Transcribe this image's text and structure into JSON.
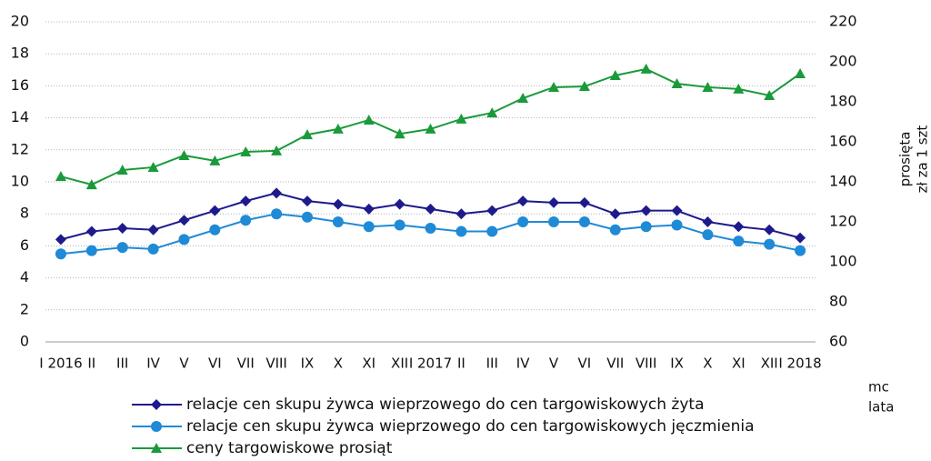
{
  "chart_data": {
    "type": "line",
    "categories": [
      "I 2016",
      "II",
      "III",
      "IV",
      "V",
      "VI",
      "VII",
      "VIII",
      "IX",
      "X",
      "XI",
      "XII",
      "I 2017",
      "II",
      "III",
      "IV",
      "V",
      "VI",
      "VII",
      "VIII",
      "IX",
      "X",
      "XI",
      "XII",
      "I 2018"
    ],
    "series": [
      {
        "name": "relacje cen skupu żywca wieprzowego do cen targowiskowych żyta",
        "color": "#1f1a8c",
        "marker": "diamond",
        "values": [
          6.4,
          6.9,
          7.1,
          7.0,
          7.6,
          8.2,
          8.8,
          9.3,
          8.8,
          8.6,
          8.3,
          8.6,
          8.3,
          8.0,
          8.2,
          8.8,
          8.7,
          8.7,
          8.0,
          8.2,
          8.2,
          7.5,
          7.2,
          7.0,
          6.5
        ]
      },
      {
        "name": "relacje cen skupu żywca wieprzowego do cen targowiskowych jęczmienia",
        "color": "#1f8ad6",
        "marker": "circle",
        "values": [
          5.5,
          5.7,
          5.9,
          5.8,
          6.4,
          7.0,
          7.6,
          8.0,
          7.8,
          7.5,
          7.2,
          7.3,
          7.1,
          6.9,
          6.9,
          7.5,
          7.5,
          7.5,
          7.0,
          7.2,
          7.3,
          6.7,
          6.3,
          6.1,
          5.7
        ]
      },
      {
        "name": "ceny targowiskowe prosiąt",
        "color": "#1a9a3a",
        "marker": "triangle",
        "axis": "y2",
        "values": [
          142.7,
          138.6,
          145.9,
          147.3,
          153.2,
          150.5,
          155.0,
          155.5,
          163.6,
          166.4,
          170.9,
          164.0,
          166.4,
          171.4,
          174.5,
          181.8,
          187.3,
          187.7,
          193.2,
          196.4,
          189.1,
          187.3,
          186.4,
          183.2,
          194.1
        ]
      }
    ],
    "ylim": [
      0,
      20
    ],
    "yticks": [
      0,
      2,
      4,
      6,
      8,
      10,
      12,
      14,
      16,
      18,
      20
    ],
    "y2lim": [
      60,
      220
    ],
    "y2ticks": [
      60,
      80,
      100,
      120,
      140,
      160,
      180,
      200,
      220
    ],
    "y2_label": [
      "prosięta",
      "zł za 1 szt"
    ],
    "x_label": [
      "mc",
      "lata"
    ],
    "grid": true,
    "legend": "bottom"
  }
}
